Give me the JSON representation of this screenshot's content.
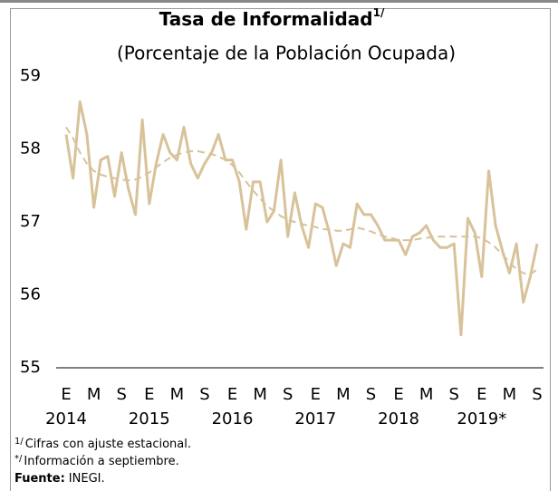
{
  "chart_data": {
    "type": "line",
    "title": "Tasa de Informalidad",
    "title_note": "1/",
    "subtitle": "(Porcentaje de la Población Ocupada)",
    "categories": [
      "E",
      null,
      null,
      null,
      "M",
      null,
      null,
      null,
      "S",
      null,
      null,
      null,
      "E",
      null,
      null,
      null,
      "M",
      null,
      null,
      null,
      "S",
      null,
      null,
      null,
      "E",
      null,
      null,
      null,
      "M",
      null,
      null,
      null,
      "S",
      null,
      null,
      null,
      "E",
      null,
      null,
      null,
      "M",
      null,
      null,
      null,
      "S",
      null,
      null,
      null,
      "E",
      null,
      null,
      null,
      "M",
      null,
      null,
      null,
      "S",
      null,
      null,
      null,
      "E",
      null,
      null,
      null,
      "M",
      null,
      null,
      null,
      "S"
    ],
    "x_groups": [
      "2014",
      "2015",
      "2016",
      "2017",
      "2018",
      "2019*"
    ],
    "series": [
      {
        "color": "#d8c29a",
        "dashed": false,
        "values": [
          58.2,
          57.6,
          58.65,
          58.2,
          57.2,
          57.85,
          57.9,
          57.35,
          57.95,
          57.45,
          57.1,
          58.4,
          57.25,
          57.8,
          58.2,
          57.95,
          57.85,
          58.3,
          57.8,
          57.6,
          57.8,
          57.95,
          58.2,
          57.85,
          57.85,
          57.55,
          56.9,
          57.55,
          57.55,
          57.0,
          57.15,
          57.85,
          56.8,
          57.4,
          56.95,
          56.65,
          57.25,
          57.2,
          56.85,
          56.4,
          56.7,
          56.65,
          57.25,
          57.1,
          57.1,
          56.95,
          56.75,
          56.75,
          56.75,
          56.55,
          56.8,
          56.85,
          56.95,
          56.75,
          56.65,
          56.65,
          56.7,
          55.45,
          57.05,
          56.85,
          56.25,
          57.7,
          56.95,
          56.6,
          56.3,
          56.7,
          55.9,
          56.25,
          56.7
        ]
      },
      {
        "color": "#d8c29a",
        "dashed": true,
        "values": [
          58.3,
          58.15,
          57.95,
          57.8,
          57.7,
          57.65,
          57.62,
          57.6,
          57.58,
          57.57,
          57.58,
          57.62,
          57.68,
          57.75,
          57.82,
          57.88,
          57.92,
          57.95,
          57.97,
          57.97,
          57.95,
          57.93,
          57.9,
          57.85,
          57.78,
          57.68,
          57.55,
          57.43,
          57.32,
          57.22,
          57.15,
          57.08,
          57.03,
          57.0,
          56.97,
          56.95,
          56.93,
          56.9,
          56.9,
          56.88,
          56.88,
          56.9,
          56.92,
          56.9,
          56.87,
          56.83,
          56.8,
          56.78,
          56.75,
          56.75,
          56.75,
          56.77,
          56.78,
          56.8,
          56.8,
          56.8,
          56.8,
          56.8,
          56.8,
          56.8,
          56.78,
          56.72,
          56.65,
          56.55,
          56.45,
          56.35,
          56.3,
          56.28,
          56.35
        ]
      }
    ],
    "ylim": [
      55,
      59
    ],
    "yticks": [
      55,
      56,
      57,
      58,
      59
    ],
    "grid": false,
    "notes": [
      {
        "mark": "1/",
        "text": "Cifras con ajuste estacional."
      },
      {
        "mark": "*/",
        "text": "Información a septiembre."
      }
    ],
    "source_label": "Fuente:",
    "source": "INEGI."
  }
}
